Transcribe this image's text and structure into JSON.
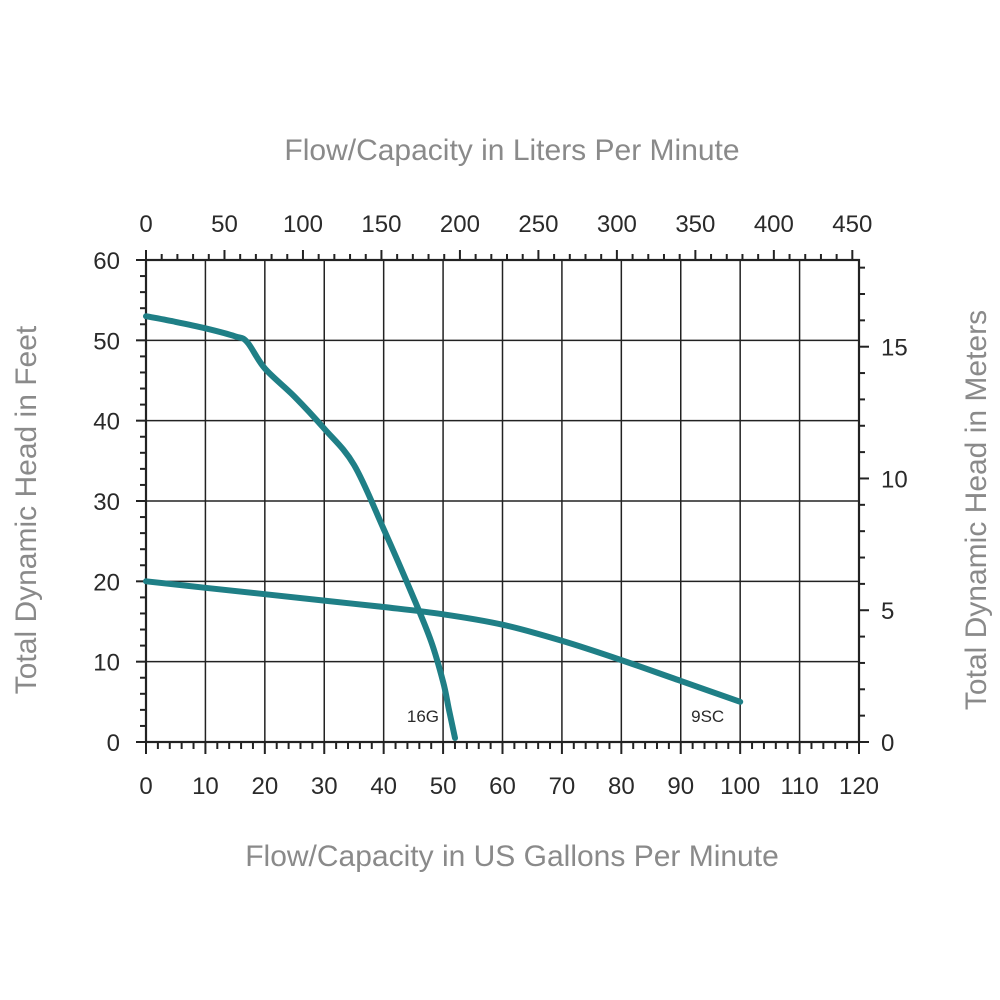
{
  "chart_data": {
    "type": "line",
    "title": "",
    "xlabel": "Flow/Capacity in US Gallons Per Minute",
    "ylabel": "Total Dynamic Head in Feet",
    "x2label": "Flow/Capacity in Liters Per Minute",
    "y2label": "Total Dynamic Head in Meters",
    "xlim": [
      0,
      120
    ],
    "ylim": [
      0,
      60
    ],
    "x2lim": [
      0,
      454.25
    ],
    "y2lim": [
      0,
      18.29
    ],
    "xticks": [
      "0",
      "10",
      "20",
      "30",
      "40",
      "50",
      "60",
      "70",
      "80",
      "90",
      "100",
      "110",
      "120"
    ],
    "yticks": [
      "0",
      "10",
      "20",
      "30",
      "40",
      "50",
      "60"
    ],
    "x2ticks": [
      "0",
      "50",
      "100",
      "150",
      "200",
      "250",
      "300",
      "350",
      "400",
      "450"
    ],
    "y2ticks": [
      "0",
      "5",
      "10",
      "15"
    ],
    "grid": true,
    "series": [
      {
        "name": "16G",
        "color": "#1f7f86",
        "x": [
          0,
          5,
          10,
          15,
          17,
          20,
          25,
          30,
          35,
          40,
          45,
          48,
          50,
          51,
          52
        ],
        "y": [
          53,
          52.3,
          51.5,
          50.5,
          49.8,
          46.5,
          43,
          39,
          34.5,
          26.5,
          18,
          12.5,
          7.5,
          4,
          0.5
        ]
      },
      {
        "name": "9SC",
        "color": "#1f7f86",
        "x": [
          0,
          10,
          20,
          30,
          40,
          50,
          60,
          70,
          80,
          90,
          100
        ],
        "y": [
          20,
          19.2,
          18.4,
          17.6,
          16.8,
          15.9,
          14.6,
          12.6,
          10.2,
          7.6,
          5
        ]
      }
    ]
  }
}
